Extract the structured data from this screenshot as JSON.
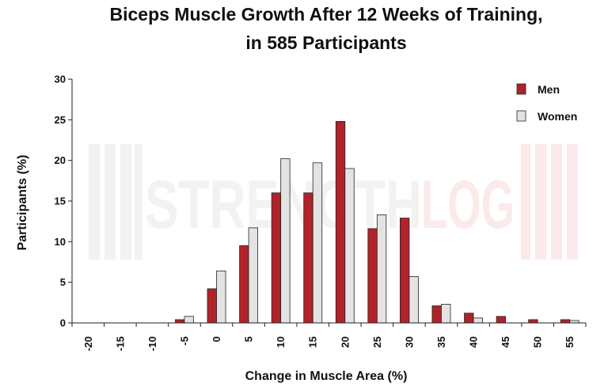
{
  "chart_data": {
    "type": "bar",
    "title": [
      "Biceps Muscle Growth After 12 Weeks of Training,",
      "in 585 Participants"
    ],
    "xlabel": "Change in Muscle Area (%)",
    "ylabel": "Participants (%)",
    "categories": [
      "-20",
      "-15",
      "-10",
      "-5",
      "0",
      "5",
      "10",
      "15",
      "20",
      "25",
      "30",
      "35",
      "40",
      "45",
      "50",
      "55"
    ],
    "ylim": [
      0,
      30
    ],
    "yticks": [
      "0",
      "5",
      "10",
      "15",
      "20",
      "25",
      "30"
    ],
    "series": [
      {
        "name": "Men",
        "color": "#b0232a",
        "values": [
          0,
          0,
          0,
          0.4,
          4.2,
          9.5,
          16.0,
          16.0,
          24.8,
          11.6,
          12.9,
          2.1,
          1.2,
          0.8,
          0.4,
          0.4
        ]
      },
      {
        "name": "Women",
        "color": "#e3e3e3",
        "values": [
          0,
          0,
          0,
          0.8,
          6.4,
          11.7,
          20.2,
          19.7,
          19.0,
          13.3,
          5.7,
          2.3,
          0.6,
          0,
          0,
          0.3
        ]
      }
    ],
    "legend_position": "top-right",
    "grid": false
  },
  "watermark": {
    "text_dark": "STRENGTH",
    "text_light": "LOG",
    "color_dark": "#f2f2f2",
    "color_light": "#fbeaea"
  }
}
